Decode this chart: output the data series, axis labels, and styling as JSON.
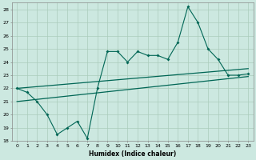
{
  "xlabel": "Humidex (Indice chaleur)",
  "x_values": [
    0,
    1,
    2,
    3,
    4,
    5,
    6,
    7,
    8,
    9,
    10,
    11,
    12,
    13,
    14,
    15,
    16,
    17,
    18,
    19,
    20,
    21,
    22,
    23
  ],
  "line1": [
    22,
    21.7,
    21,
    20,
    18.5,
    19,
    19.5,
    18.2,
    22,
    24.8,
    24.8,
    24,
    24.8,
    24.5,
    24.5,
    24.2,
    25.5,
    28.2,
    27,
    25,
    24.2,
    23,
    23,
    23.1
  ],
  "trend1_x": [
    0,
    23
  ],
  "trend1_y": [
    22.0,
    23.5
  ],
  "trend2_x": [
    0,
    23
  ],
  "trend2_y": [
    21.0,
    22.9
  ],
  "bg_color": "#cce8e0",
  "grid_color": "#aaccbb",
  "line_color": "#006655",
  "ylim": [
    18,
    28.5
  ],
  "yticks": [
    18,
    19,
    20,
    21,
    22,
    23,
    24,
    25,
    26,
    27,
    28
  ],
  "xlim_min": -0.5,
  "xlim_max": 23.5
}
